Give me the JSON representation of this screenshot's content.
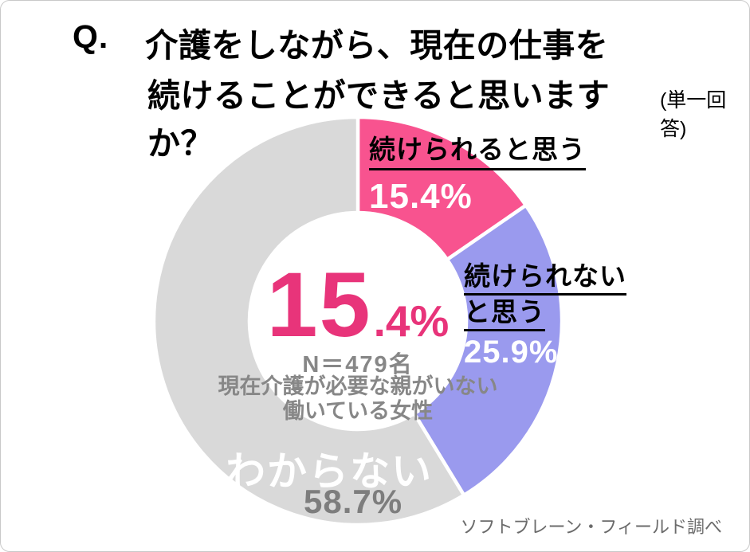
{
  "title": {
    "prefix": "Q.",
    "line1": "介護をしながら、現在の仕事を",
    "line2": "続けることができると思いますか？",
    "note": "(単一回答)"
  },
  "chart_data": {
    "type": "pie",
    "subtype": "donut",
    "title": "介護をしながら、現在の仕事を続けることができると思いますか？（単一回答）",
    "start_angle_deg": 0,
    "direction": "clockwise",
    "donut_hole_ratio": 0.53,
    "categories": [
      "続けられると思う",
      "続けられないと思う",
      "わからない"
    ],
    "values": [
      15.4,
      25.9,
      58.7
    ],
    "unit": "%",
    "colors": [
      "#f8538f",
      "#9a9aee",
      "#d9d9d9"
    ],
    "slices": [
      {
        "label": "続けられると思う",
        "value": 15.4,
        "pct_label": "15.4%",
        "color": "#f8538f"
      },
      {
        "label": "続けられないと思う",
        "label_line1": "続けられない",
        "label_line2": "と思う",
        "value": 25.9,
        "pct_label": "25.9%",
        "color": "#9a9aee"
      },
      {
        "label": "わからない",
        "value": 58.7,
        "pct_label": "58.7%",
        "color": "#d9d9d9"
      }
    ]
  },
  "center": {
    "big": "15",
    "small": ".4%",
    "sample": "N＝479名",
    "desc_line1": "現在介護が必要な親がいない",
    "desc_line2": "働いている女性"
  },
  "credit": "ソフトブレーン・フィールド調べ",
  "palette": {
    "pink": "#f8538f",
    "purple": "#9a9aee",
    "gray": "#d9d9d9",
    "center_pink": "#e8347a",
    "center_text_gray": "#878787",
    "pct_gray": "#7d7d7d",
    "credit_gray": "#6b6b6b",
    "label_black": "#000000"
  }
}
